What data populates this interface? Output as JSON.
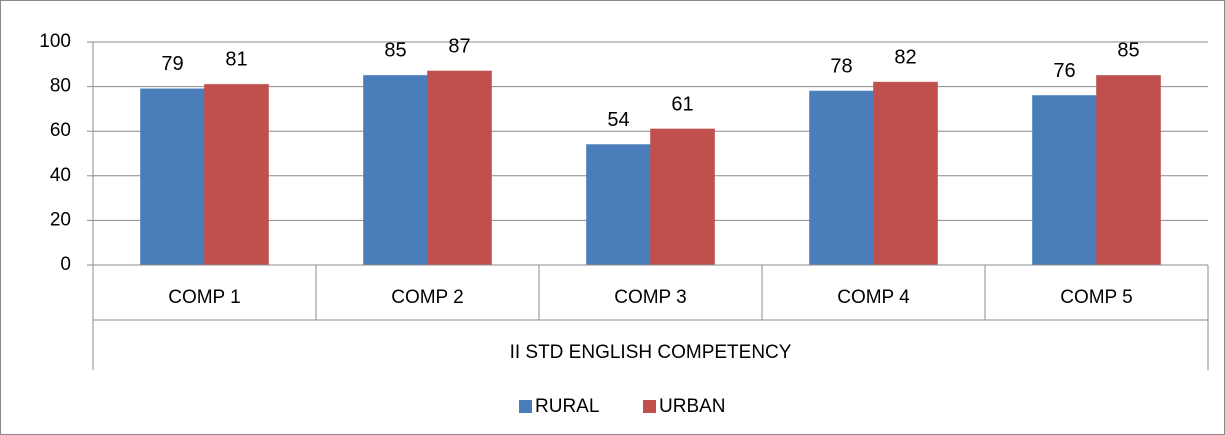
{
  "chart_data": {
    "type": "bar",
    "categories": [
      "COMP 1",
      "COMP 2",
      "COMP 3",
      "COMP 4",
      "COMP 5"
    ],
    "group_label": "II STD ENGLISH COMPETENCY",
    "series": [
      {
        "name": "RURAL",
        "color": "#4a7ebb",
        "values": [
          79,
          85,
          54,
          78,
          76
        ]
      },
      {
        "name": "URBAN",
        "color": "#c0504d",
        "values": [
          81,
          87,
          61,
          82,
          85
        ]
      }
    ],
    "ylim": [
      0,
      100
    ],
    "yticks": [
      0,
      20,
      40,
      60,
      80,
      100
    ],
    "grid": true,
    "legend": "bottom"
  }
}
